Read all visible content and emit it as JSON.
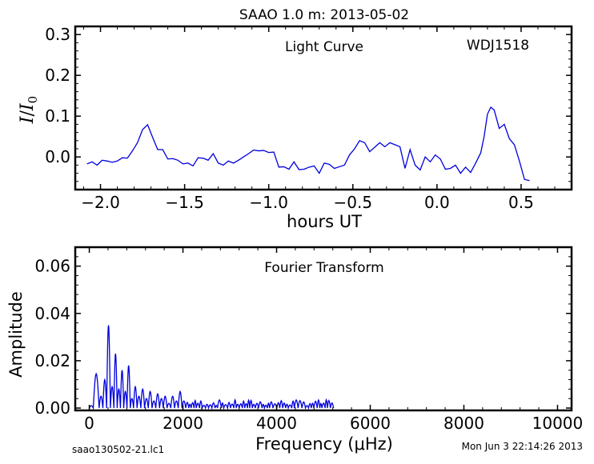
{
  "figure": {
    "title": "SAAO 1.0 m:  2013-05-02",
    "footer_left": "saao130502-21.lc1",
    "footer_right": "Mon Jun  3 22:14:26 2013"
  },
  "chart_data": [
    {
      "type": "line",
      "title": "Light Curve",
      "annotation": "WDJ1518",
      "xlabel": "hours UT",
      "ylabel": "I/I0",
      "xlim": [
        -2.15,
        0.8
      ],
      "ylim": [
        -0.08,
        0.32
      ],
      "xticks": [
        -2.0,
        -1.5,
        -1.0,
        -0.5,
        0.0,
        0.5
      ],
      "xtick_labels": [
        "−2.0",
        "−1.5",
        "−1.0",
        "−0.5",
        "0.0",
        "0.5"
      ],
      "yticks": [
        0.0,
        0.1,
        0.2,
        0.3
      ],
      "ytick_labels": [
        "0.0",
        "0.1",
        "0.2",
        "0.3"
      ],
      "line_color": "#0000dd",
      "series": [
        {
          "x": [
            -2.08,
            -2.05,
            -2.02,
            -1.99,
            -1.96,
            -1.93,
            -1.9,
            -1.87,
            -1.84,
            -1.81,
            -1.78,
            -1.75,
            -1.72,
            -1.69,
            -1.66,
            -1.63,
            -1.6,
            -1.57,
            -1.54,
            -1.51,
            -1.48,
            -1.45,
            -1.42,
            -1.39,
            -1.36,
            -1.33,
            -1.3,
            -1.27,
            -1.24,
            -1.21,
            -1.18,
            -1.15,
            -1.12,
            -1.09,
            -1.06,
            -1.03,
            -1.0,
            -0.97,
            -0.94,
            -0.91,
            -0.88,
            -0.85,
            -0.82,
            -0.79,
            -0.76,
            -0.73,
            -0.7,
            -0.67,
            -0.64,
            -0.61,
            -0.58,
            -0.55,
            -0.52,
            -0.49,
            -0.46,
            -0.43,
            -0.4,
            -0.37,
            -0.34,
            -0.31,
            -0.28,
            -0.25,
            -0.22,
            -0.19,
            -0.16,
            -0.13,
            -0.1,
            -0.07,
            -0.04,
            -0.01,
            0.02,
            0.05,
            0.08,
            0.11,
            0.14,
            0.17,
            0.2,
            0.23,
            0.26,
            0.28,
            0.3,
            0.32,
            0.34,
            0.37,
            0.4,
            0.43,
            0.46,
            0.49,
            0.52,
            0.55
          ],
          "y": [
            -0.017,
            -0.012,
            -0.02,
            -0.008,
            -0.01,
            -0.013,
            -0.01,
            -0.002,
            -0.003,
            0.015,
            0.035,
            0.067,
            0.079,
            0.048,
            0.018,
            0.018,
            -0.005,
            -0.004,
            -0.008,
            -0.017,
            -0.015,
            -0.022,
            -0.002,
            -0.003,
            -0.008,
            0.008,
            -0.015,
            -0.02,
            -0.01,
            -0.015,
            -0.008,
            0.0,
            0.008,
            0.017,
            0.015,
            0.016,
            0.011,
            0.012,
            -0.025,
            -0.024,
            -0.03,
            -0.012,
            -0.031,
            -0.03,
            -0.025,
            -0.022,
            -0.04,
            -0.015,
            -0.018,
            -0.028,
            -0.024,
            -0.02,
            0.005,
            0.02,
            0.04,
            0.035,
            0.013,
            0.024,
            0.035,
            0.025,
            0.035,
            0.03,
            0.025,
            -0.028,
            0.018,
            -0.02,
            -0.032,
            0.0,
            -0.012,
            0.005,
            -0.005,
            -0.03,
            -0.028,
            -0.02,
            -0.04,
            -0.025,
            -0.038,
            -0.015,
            0.01,
            0.05,
            0.105,
            0.122,
            0.115,
            0.07,
            0.08,
            0.045,
            0.03,
            -0.01,
            -0.055,
            -0.058
          ]
        }
      ]
    },
    {
      "type": "line",
      "title": "Fourier Transform",
      "xlabel": "Frequency (μHz)",
      "ylabel": "Amplitude",
      "xlim": [
        -300,
        10300
      ],
      "ylim": [
        -0.001,
        0.068
      ],
      "xticks": [
        0,
        2000,
        4000,
        6000,
        8000,
        10000
      ],
      "xtick_labels": [
        "0",
        "2000",
        "4000",
        "6000",
        "8000",
        "10000"
      ],
      "yticks": [
        0.0,
        0.02,
        0.04,
        0.06
      ],
      "ytick_labels": [
        "0.00",
        "0.02",
        "0.04",
        "0.06"
      ],
      "line_color": "#0000dd",
      "series": [
        {
          "peaks_f": [
            0,
            170,
            250,
            330,
            410,
            490,
            560,
            630,
            700,
            770,
            840,
            910,
            980,
            1060,
            1140,
            1220,
            1300,
            1380,
            1460,
            1540,
            1620,
            1700,
            1780,
            1860,
            1940,
            2020
          ],
          "peaks_a": [
            0.001,
            0.0145,
            0.005,
            0.012,
            0.035,
            0.009,
            0.023,
            0.008,
            0.016,
            0.007,
            0.018,
            0.004,
            0.009,
            0.005,
            0.008,
            0.004,
            0.007,
            0.003,
            0.006,
            0.004,
            0.005,
            0.002,
            0.005,
            0.003,
            0.007,
            0.003
          ],
          "noise_end_f": 5180,
          "noise_level": 0.0028
        }
      ]
    }
  ]
}
